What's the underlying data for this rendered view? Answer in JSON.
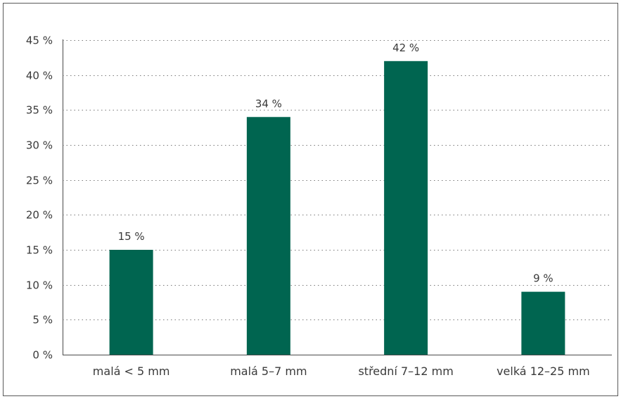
{
  "chart_data": {
    "type": "bar",
    "title": "",
    "xlabel": "",
    "ylabel": "",
    "categories": [
      "malá < 5 mm",
      "malá 5–7 mm",
      "střední 7–12 mm",
      "velká 12–25 mm"
    ],
    "values": [
      15,
      34,
      42,
      9
    ],
    "data_labels": [
      "15 %",
      "34 %",
      "42 %",
      "9 %"
    ],
    "ylim": [
      0,
      45
    ],
    "yticks": [
      0,
      5,
      10,
      15,
      20,
      25,
      30,
      35,
      40,
      45
    ],
    "ytick_labels": [
      "0 %",
      "5 %",
      "10 %",
      "15 %",
      "20 %",
      "25 %",
      "30 %",
      "35 %",
      "40 %",
      "45 %"
    ],
    "grid": true,
    "grid_style": "dotted",
    "legend": "none",
    "colors": {
      "bar": "#006550",
      "axis": "#4a4a4a",
      "grid": "#7a7a7a",
      "text": "#3a3a3a"
    }
  }
}
